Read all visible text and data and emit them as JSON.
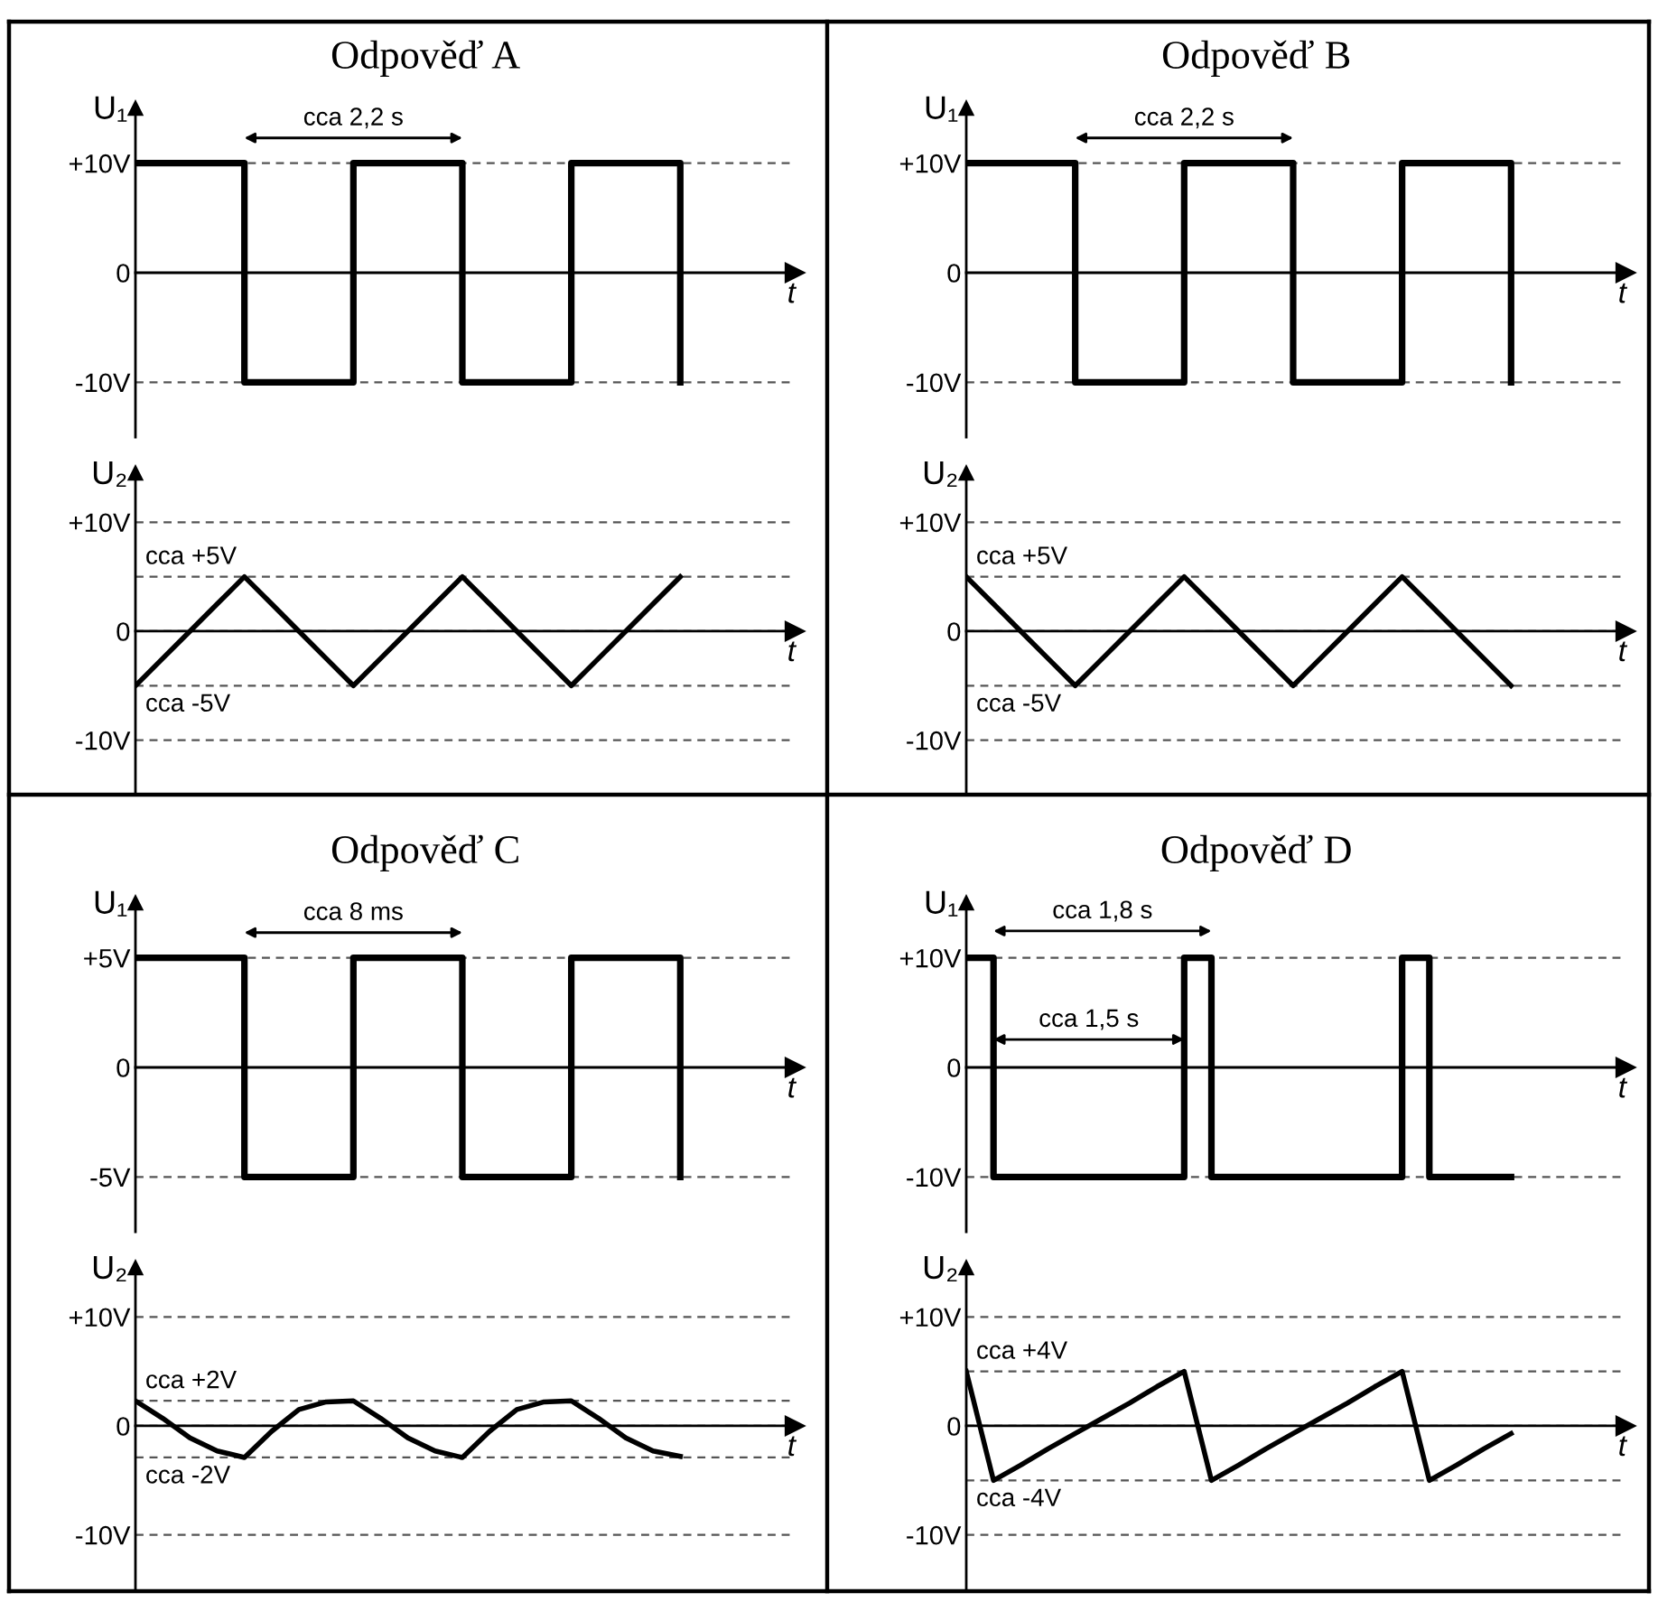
{
  "chart_data": [
    {
      "type": "step",
      "title": "Odpověď A",
      "ylabel": "U₁",
      "xlabel": "t",
      "categories": [
        null,
        null,
        null,
        null,
        null,
        null,
        null,
        null,
        null,
        null,
        null,
        null,
        null,
        null,
        null,
        null,
        null,
        null,
        null,
        null,
        null
      ],
      "color": "#000000",
      "values": [
        10,
        10,
        10,
        10,
        -10,
        -10,
        -10,
        -10,
        10,
        10,
        10,
        10,
        -10,
        -10,
        -10,
        -10,
        10,
        10,
        10,
        10,
        -10
      ],
      "ylim": [
        -15,
        15
      ],
      "yticks": [
        {
          "value": 10,
          "label": "+10V"
        },
        0,
        {
          "value": -10,
          "label": "-10V"
        }
      ],
      "grid": "y",
      "tick_labels": "y",
      "legend": false,
      "annotations": [
        "cca 2,2 s"
      ]
    },
    {
      "type": "line",
      "ylabel": "U₂",
      "xlabel": "t",
      "categories": [
        null,
        null,
        null,
        null,
        null,
        null,
        null,
        null,
        null,
        null,
        null,
        null,
        null,
        null,
        null,
        null,
        null,
        null,
        null,
        null,
        null
      ],
      "color": "#000000",
      "values": [
        -5,
        -2.5,
        0,
        2.5,
        5,
        2.5,
        0,
        -2.5,
        -5,
        -2.5,
        0,
        2.5,
        5,
        2.5,
        0,
        -2.5,
        -5,
        -2.5,
        0,
        2.5,
        5
      ],
      "ylim": [
        -15,
        14.5
      ],
      "yticks": [
        {
          "value": 10,
          "label": "+10V"
        },
        0,
        {
          "value": -10,
          "label": "-10V"
        }
      ],
      "grid": "y",
      "tick_labels": "y",
      "legend": false,
      "ref_lines": [
        {
          "axis": "y",
          "value": 5,
          "label": "cca +5V",
          "line_style": "dashed"
        },
        {
          "axis": "y",
          "value": -5,
          "label": "cca -5V",
          "line_style": "dashed"
        }
      ]
    },
    {
      "type": "step",
      "title": "Odpověď B",
      "ylabel": "U₁",
      "xlabel": "t",
      "categories": [
        null,
        null,
        null,
        null,
        null,
        null,
        null,
        null,
        null,
        null,
        null,
        null,
        null,
        null,
        null,
        null,
        null,
        null,
        null,
        null,
        null
      ],
      "color": "#000000",
      "values": [
        10,
        10,
        10,
        10,
        -10,
        -10,
        -10,
        -10,
        10,
        10,
        10,
        10,
        -10,
        -10,
        -10,
        -10,
        10,
        10,
        10,
        10,
        -10
      ],
      "ylim": [
        -15,
        15
      ],
      "yticks": [
        {
          "value": 10,
          "label": "+10V"
        },
        0,
        {
          "value": -10,
          "label": "-10V"
        }
      ],
      "grid": "y",
      "tick_labels": "y",
      "legend": false,
      "annotations": [
        "cca 2,2 s"
      ]
    },
    {
      "type": "line",
      "ylabel": "U₂",
      "xlabel": "t",
      "categories": [
        null,
        null,
        null,
        null,
        null,
        null,
        null,
        null,
        null,
        null,
        null,
        null,
        null,
        null,
        null,
        null,
        null,
        null,
        null,
        null,
        null
      ],
      "color": "#000000",
      "values": [
        5,
        2.5,
        0,
        -2.5,
        -5,
        -2.5,
        0,
        2.5,
        5,
        2.5,
        0,
        -2.5,
        -5,
        -2.5,
        0,
        2.5,
        5,
        2.5,
        0,
        -2.5,
        -5
      ],
      "ylim": [
        -15,
        14.5
      ],
      "yticks": [
        {
          "value": 10,
          "label": "+10V"
        },
        0,
        {
          "value": -10,
          "label": "-10V"
        }
      ],
      "grid": "y",
      "tick_labels": "y",
      "legend": false,
      "ref_lines": [
        {
          "axis": "y",
          "value": 5,
          "label": "cca +5V",
          "line_style": "dashed"
        },
        {
          "axis": "y",
          "value": -5,
          "label": "cca -5V",
          "line_style": "dashed"
        }
      ]
    },
    {
      "type": "step",
      "title": "Odpověď C",
      "ylabel": "U₁",
      "xlabel": "t",
      "categories": [
        null,
        null,
        null,
        null,
        null,
        null,
        null,
        null,
        null,
        null,
        null,
        null,
        null,
        null,
        null,
        null,
        null,
        null,
        null,
        null,
        null
      ],
      "color": "#000000",
      "values": [
        5,
        5,
        5,
        5,
        -5,
        -5,
        -5,
        -5,
        5,
        5,
        5,
        5,
        -5,
        -5,
        -5,
        -5,
        5,
        5,
        5,
        5,
        -5
      ],
      "ylim": [
        -7.5,
        7.5
      ],
      "yticks": [
        {
          "value": 5,
          "label": "+5V"
        },
        0,
        {
          "value": -5,
          "label": "-5V"
        }
      ],
      "grid": "y",
      "tick_labels": "y",
      "legend": false,
      "annotations": [
        "cca 8 ms"
      ]
    },
    {
      "type": "line",
      "ylabel": "U₂",
      "xlabel": "t",
      "categories": [
        null,
        null,
        null,
        null,
        null,
        null,
        null,
        null,
        null,
        null,
        null,
        null,
        null,
        null,
        null,
        null,
        null,
        null,
        null,
        null,
        null
      ],
      "color": "#000000",
      "values": [
        2.3,
        0.7,
        -1.1,
        -2.3,
        -2.9,
        -0.5,
        1.5,
        2.2,
        2.3,
        0.7,
        -1.1,
        -2.3,
        -2.9,
        -0.5,
        1.5,
        2.2,
        2.3,
        0.7,
        -1.1,
        -2.3,
        -2.8
      ],
      "ylim": [
        -15,
        14.5
      ],
      "yticks": [
        {
          "value": 10,
          "label": "+10V"
        },
        0,
        {
          "value": -10,
          "label": "-10V"
        }
      ],
      "grid": "y",
      "tick_labels": "y",
      "legend": false,
      "ref_lines": [
        {
          "axis": "y",
          "value": 2.3,
          "label": "cca +2V",
          "line_style": "dashed"
        },
        {
          "axis": "y",
          "value": -2.9,
          "label": "cca -2V",
          "line_style": "dashed"
        }
      ]
    },
    {
      "type": "step",
      "title": "Odpověď D",
      "ylabel": "U₁",
      "xlabel": "t",
      "categories": [
        null,
        null,
        null,
        null,
        null,
        null,
        null,
        null,
        null,
        null,
        null,
        null,
        null,
        null,
        null,
        null,
        null,
        null,
        null,
        null,
        null
      ],
      "color": "#000000",
      "values": [
        10,
        -10,
        -10,
        -10,
        -10,
        -10,
        -10,
        -10,
        10,
        -10,
        -10,
        -10,
        -10,
        -10,
        -10,
        -10,
        10,
        -10,
        -10,
        -10,
        -10
      ],
      "ylim": [
        -15,
        15
      ],
      "yticks": [
        {
          "value": 10,
          "label": "+10V"
        },
        0,
        {
          "value": -10,
          "label": "-10V"
        }
      ],
      "grid": "y",
      "tick_labels": "y",
      "legend": false,
      "annotations": [
        "cca 1,8 s",
        "cca 1,5 s"
      ]
    },
    {
      "type": "line",
      "ylabel": "U₂",
      "xlabel": "t",
      "categories": [
        null,
        null,
        null,
        null,
        null,
        null,
        null,
        null,
        null,
        null,
        null,
        null,
        null,
        null,
        null,
        null,
        null,
        null,
        null,
        null,
        null
      ],
      "color": "#000000",
      "values": [
        5,
        -5,
        -3.6,
        -2.1,
        -0.7,
        0.7,
        2.1,
        3.6,
        5,
        -5,
        -3.6,
        -2.1,
        -0.7,
        0.7,
        2.1,
        3.6,
        5,
        -5,
        -3.6,
        -2.1,
        -0.7
      ],
      "ylim": [
        -15,
        14.5
      ],
      "yticks": [
        {
          "value": 10,
          "label": "+10V"
        },
        0,
        {
          "value": -10,
          "label": "-10V"
        }
      ],
      "grid": "y",
      "tick_labels": "y",
      "legend": false,
      "ref_lines": [
        {
          "axis": "y",
          "value": 5,
          "label": "cca +4V",
          "line_style": "dashed"
        },
        {
          "axis": "y",
          "value": -5,
          "label": "cca -4V",
          "line_style": "dashed"
        }
      ]
    }
  ]
}
